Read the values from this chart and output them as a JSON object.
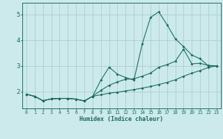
{
  "background_color": "#cce9ec",
  "grid_color": "#aacdd2",
  "line_color": "#1a6b5a",
  "x_label": "Humidex (Indice chaleur)",
  "x_ticks": [
    0,
    1,
    2,
    3,
    4,
    5,
    6,
    7,
    8,
    9,
    10,
    11,
    12,
    13,
    14,
    15,
    16,
    17,
    18,
    19,
    20,
    21,
    22,
    23
  ],
  "y_ticks": [
    2,
    3,
    4,
    5
  ],
  "ylim": [
    1.35,
    5.45
  ],
  "xlim": [
    -0.5,
    23.5
  ],
  "series": [
    {
      "x": [
        0,
        1,
        2,
        3,
        4,
        5,
        6,
        7,
        8,
        9,
        10,
        11,
        12,
        13,
        14,
        15,
        16,
        17,
        18,
        19,
        20,
        21,
        22,
        23
      ],
      "y": [
        1.9,
        1.82,
        1.65,
        1.72,
        1.74,
        1.74,
        1.71,
        1.64,
        1.82,
        2.45,
        2.95,
        2.68,
        2.55,
        2.45,
        3.85,
        4.88,
        5.1,
        4.6,
        4.05,
        3.75,
        3.42,
        3.28,
        3.0,
        3.0
      ]
    },
    {
      "x": [
        0,
        1,
        2,
        3,
        4,
        5,
        6,
        7,
        8,
        9,
        10,
        11,
        12,
        13,
        14,
        15,
        16,
        17,
        18,
        19,
        20,
        21,
        22,
        23
      ],
      "y": [
        1.9,
        1.82,
        1.65,
        1.72,
        1.74,
        1.74,
        1.71,
        1.64,
        1.82,
        2.05,
        2.25,
        2.38,
        2.48,
        2.5,
        2.6,
        2.72,
        2.95,
        3.05,
        3.18,
        3.65,
        3.08,
        3.1,
        3.02,
        3.0
      ]
    },
    {
      "x": [
        0,
        1,
        2,
        3,
        4,
        5,
        6,
        7,
        8,
        9,
        10,
        11,
        12,
        13,
        14,
        15,
        16,
        17,
        18,
        19,
        20,
        21,
        22,
        23
      ],
      "y": [
        1.9,
        1.82,
        1.65,
        1.72,
        1.74,
        1.74,
        1.71,
        1.64,
        1.82,
        1.88,
        1.94,
        1.98,
        2.03,
        2.08,
        2.14,
        2.2,
        2.28,
        2.36,
        2.46,
        2.6,
        2.72,
        2.82,
        2.94,
        3.0
      ]
    }
  ]
}
